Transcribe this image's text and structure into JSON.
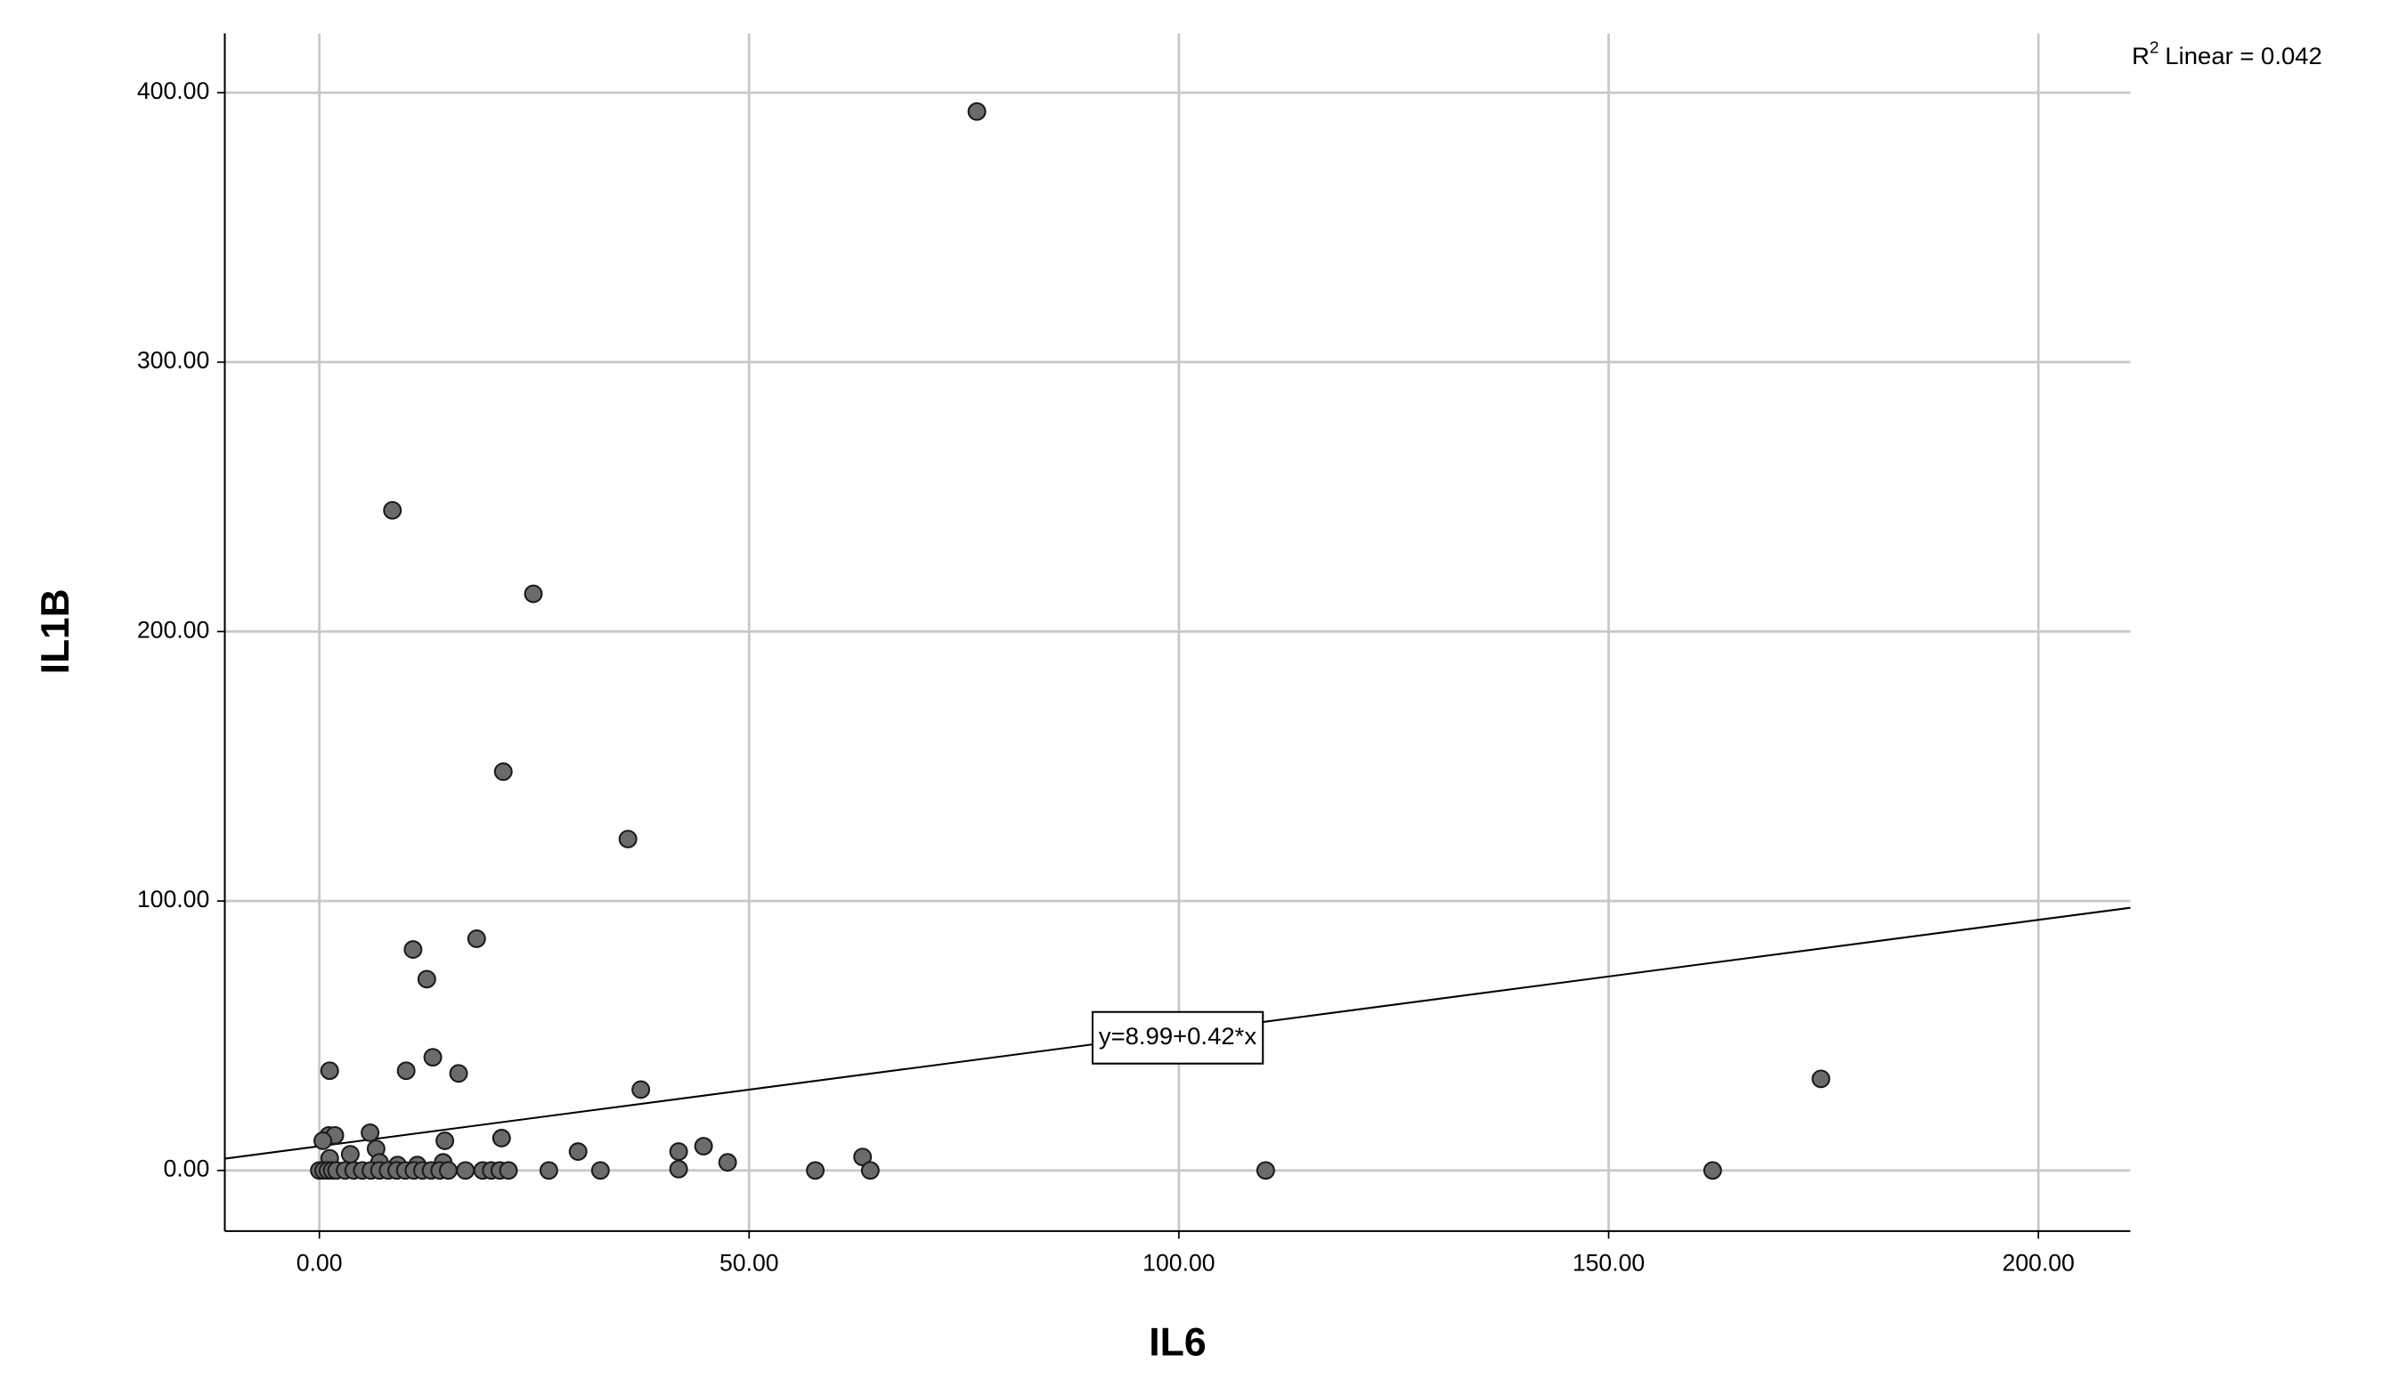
{
  "chart_data": {
    "type": "scatter",
    "x_label": "IL6",
    "y_label": "IL1B",
    "r_squared": {
      "symbol": "R",
      "superscript": "2",
      "label": "Linear = 0.042"
    },
    "fit_line": {
      "label": "y=8.99+0.42*x",
      "intercept": 8.99,
      "slope": 0.42
    },
    "xlim": [
      -11,
      210.7
    ],
    "ylim": [
      -22.5,
      422
    ],
    "xticks": [
      {
        "value": 0,
        "label": "0.00"
      },
      {
        "value": 50,
        "label": "50.00"
      },
      {
        "value": 100,
        "label": "100.00"
      },
      {
        "value": 150,
        "label": "150.00"
      },
      {
        "value": 200,
        "label": "200.00"
      }
    ],
    "yticks": [
      {
        "value": 0,
        "label": "0.00"
      },
      {
        "value": 100,
        "label": "100.00"
      },
      {
        "value": 200,
        "label": "200.00"
      },
      {
        "value": 300,
        "label": "300.00"
      },
      {
        "value": 400,
        "label": "400.00"
      }
    ],
    "grid": true,
    "color": "#6b6b6b",
    "series": [
      {
        "x": [
          76.5,
          8.5,
          24.9,
          21.4,
          35.9,
          18.3,
          10.9,
          12.5,
          13.2,
          1.2,
          10.1,
          16.2,
          37.4,
          174.7,
          5.9,
          14.6,
          21.2,
          30.1,
          41.8,
          44.7,
          47.5,
          63.2,
          64.1,
          57.7,
          32.7,
          26.7,
          41.8,
          110.1,
          162.1,
          1.1,
          1.8,
          0.4,
          6.6,
          7.0,
          3.6,
          1.2,
          9.1,
          14.4,
          11.4,
          0,
          0.5,
          1,
          1.5,
          2,
          3,
          4,
          5,
          6,
          7,
          8,
          9,
          10,
          11,
          12,
          13,
          14,
          15,
          17,
          19,
          20,
          21,
          22
        ],
        "values": [
          393,
          245,
          214,
          148,
          123,
          86,
          82,
          71,
          42,
          37,
          37,
          36,
          30,
          34,
          14,
          11,
          12,
          7,
          7,
          9,
          3,
          5,
          0,
          0,
          0,
          0,
          0.5,
          0,
          0,
          13,
          13,
          11,
          8,
          3,
          6,
          4.5,
          2,
          3,
          2,
          0,
          0,
          0,
          0,
          0,
          0,
          0,
          0,
          0,
          0,
          0,
          0,
          0,
          0,
          0,
          0,
          0,
          0,
          0,
          0,
          0,
          0,
          0
        ]
      }
    ]
  }
}
